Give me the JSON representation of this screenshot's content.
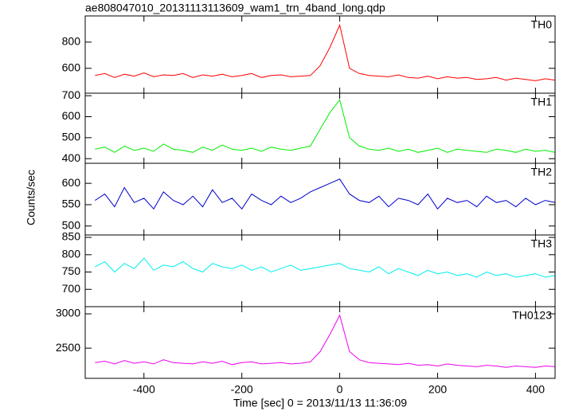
{
  "chart_data": {
    "type": "line",
    "title": "ae808047010_20131113113609_wam1_trn_4band_long.qdp",
    "x_label": "Time [sec] 0 = 2013/11/13 11:36:09",
    "y_label": "Counts/sec",
    "xlim": [
      -520,
      440
    ],
    "xticks": [
      -400,
      -200,
      0,
      200,
      400
    ],
    "x": [
      -500,
      -480,
      -460,
      -440,
      -420,
      -400,
      -380,
      -360,
      -340,
      -320,
      -300,
      -280,
      -260,
      -240,
      -220,
      -200,
      -180,
      -160,
      -140,
      -120,
      -100,
      -80,
      -60,
      -40,
      -20,
      0,
      20,
      40,
      60,
      80,
      100,
      120,
      140,
      160,
      180,
      200,
      220,
      240,
      260,
      280,
      300,
      320,
      340,
      360,
      380,
      400,
      420,
      440
    ],
    "panels": [
      {
        "name": "TH0",
        "color": "#ff0000",
        "ylim": [
          410,
          1000
        ],
        "yticks": [
          600,
          800
        ],
        "values": [
          545,
          560,
          530,
          555,
          540,
          565,
          535,
          550,
          545,
          560,
          530,
          550,
          540,
          555,
          535,
          545,
          560,
          530,
          545,
          550,
          535,
          540,
          545,
          620,
          760,
          930,
          600,
          560,
          545,
          540,
          535,
          550,
          530,
          525,
          540,
          520,
          535,
          525,
          530,
          515,
          520,
          530,
          510,
          525,
          515,
          505,
          520,
          510
        ]
      },
      {
        "name": "TH1",
        "color": "#00ee00",
        "ylim": [
          378,
          712
        ],
        "yticks": [
          400,
          500,
          600,
          700
        ],
        "values": [
          445,
          455,
          430,
          460,
          440,
          450,
          435,
          470,
          445,
          440,
          430,
          455,
          440,
          465,
          445,
          440,
          450,
          435,
          455,
          445,
          440,
          450,
          460,
          540,
          620,
          680,
          500,
          460,
          445,
          440,
          450,
          435,
          445,
          430,
          440,
          450,
          430,
          445,
          440,
          435,
          430,
          445,
          440,
          430,
          445,
          435,
          440,
          430
        ]
      },
      {
        "name": "TH2",
        "color": "#0000cc",
        "ylim": [
          479,
          647
        ],
        "yticks": [
          500,
          550,
          600
        ],
        "values": [
          560,
          575,
          545,
          590,
          555,
          565,
          540,
          580,
          560,
          550,
          570,
          545,
          585,
          555,
          565,
          540,
          575,
          560,
          550,
          570,
          555,
          565,
          580,
          590,
          600,
          610,
          575,
          560,
          555,
          570,
          545,
          565,
          560,
          550,
          575,
          540,
          565,
          555,
          560,
          545,
          570,
          555,
          560,
          545,
          565,
          550,
          560,
          555
        ]
      },
      {
        "name": "TH3",
        "color": "#00eeee",
        "ylim": [
          650,
          857
        ],
        "yticks": [
          700,
          750,
          800,
          850
        ],
        "values": [
          765,
          780,
          750,
          775,
          760,
          790,
          755,
          770,
          765,
          780,
          760,
          750,
          775,
          765,
          760,
          770,
          755,
          765,
          750,
          760,
          770,
          755,
          760,
          765,
          770,
          775,
          760,
          755,
          750,
          765,
          745,
          760,
          750,
          740,
          755,
          745,
          750,
          740,
          745,
          735,
          750,
          740,
          745,
          735,
          740,
          745,
          735,
          740
        ]
      },
      {
        "name": "TH0123",
        "color": "#ee00ee",
        "ylim": [
          2060,
          3105
        ],
        "yticks": [
          2500,
          3000
        ],
        "values": [
          2290,
          2310,
          2270,
          2320,
          2280,
          2300,
          2270,
          2330,
          2290,
          2280,
          2270,
          2300,
          2280,
          2310,
          2260,
          2290,
          2300,
          2270,
          2280,
          2290,
          2270,
          2280,
          2300,
          2450,
          2700,
          2980,
          2450,
          2330,
          2290,
          2280,
          2270,
          2260,
          2280,
          2250,
          2260,
          2240,
          2270,
          2250,
          2240,
          2230,
          2250,
          2240,
          2220,
          2240,
          2230,
          2220,
          2240,
          2230
        ]
      }
    ]
  }
}
